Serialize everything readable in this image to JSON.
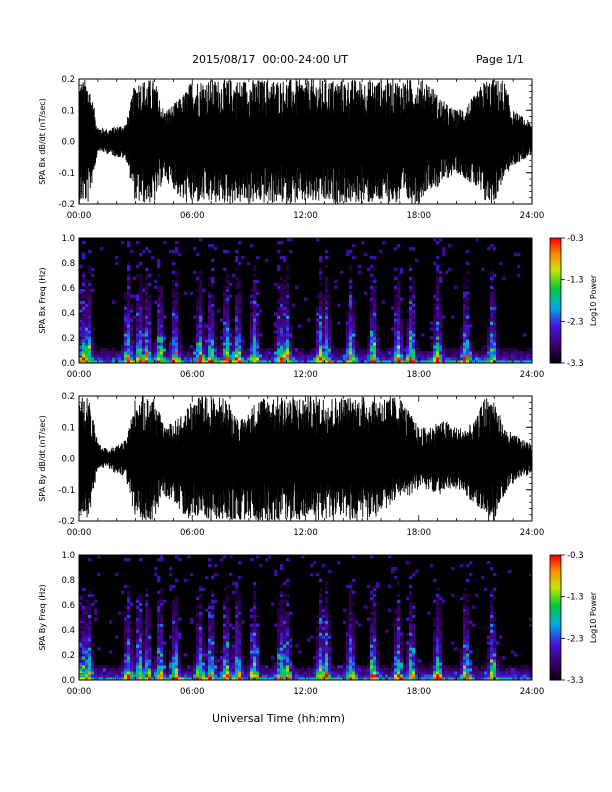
{
  "header": {
    "title": "2015/08/17  00:00-24:00 UT",
    "page": "Page 1/1"
  },
  "xaxis_label": "Universal Time (hh:mm)",
  "chart_data": [
    {
      "type": "line",
      "title": "",
      "ylabel": "SPA Bx dB/dt (nT/sec)",
      "xlabel": "",
      "x_ticks": [
        "00:00",
        "06:00",
        "12:00",
        "18:00",
        "24:00"
      ],
      "xlim": [
        0,
        24
      ],
      "ylim": [
        -0.2,
        0.2
      ],
      "y_ticks": [
        "-0.2",
        "-0.1",
        "0.0",
        "0.1",
        "0.2"
      ],
      "y_tick_values": [
        -0.2,
        -0.1,
        0.0,
        0.1,
        0.2
      ],
      "color": "#000000",
      "envelope": {
        "hours": [
          0.0,
          0.5,
          1.0,
          1.5,
          2.0,
          2.5,
          3.0,
          3.5,
          4.0,
          4.5,
          5.0,
          5.5,
          6.0,
          6.5,
          7.0,
          7.5,
          8.0,
          8.5,
          9.0,
          9.5,
          10.0,
          10.5,
          11.0,
          11.5,
          12.0,
          12.5,
          13.0,
          13.5,
          14.0,
          14.5,
          15.0,
          15.5,
          16.0,
          16.5,
          17.0,
          17.5,
          18.0,
          18.5,
          19.0,
          19.5,
          20.0,
          20.5,
          21.0,
          21.5,
          22.0,
          22.5,
          23.0,
          23.5,
          24.0
        ],
        "max": [
          0.2,
          0.2,
          0.05,
          0.04,
          0.05,
          0.06,
          0.2,
          0.2,
          0.2,
          0.1,
          0.12,
          0.15,
          0.2,
          0.2,
          0.2,
          0.2,
          0.2,
          0.2,
          0.2,
          0.2,
          0.2,
          0.2,
          0.2,
          0.2,
          0.2,
          0.2,
          0.2,
          0.2,
          0.2,
          0.2,
          0.2,
          0.2,
          0.2,
          0.2,
          0.2,
          0.2,
          0.2,
          0.2,
          0.15,
          0.12,
          0.1,
          0.12,
          0.15,
          0.2,
          0.2,
          0.2,
          0.1,
          0.08,
          0.06
        ],
        "min": [
          -0.2,
          -0.2,
          -0.03,
          -0.04,
          -0.05,
          -0.06,
          -0.2,
          -0.2,
          -0.2,
          -0.12,
          -0.15,
          -0.2,
          -0.2,
          -0.2,
          -0.2,
          -0.2,
          -0.2,
          -0.2,
          -0.2,
          -0.2,
          -0.2,
          -0.2,
          -0.2,
          -0.2,
          -0.2,
          -0.2,
          -0.2,
          -0.2,
          -0.2,
          -0.2,
          -0.2,
          -0.2,
          -0.2,
          -0.2,
          -0.2,
          -0.2,
          -0.2,
          -0.15,
          -0.15,
          -0.12,
          -0.1,
          -0.12,
          -0.15,
          -0.2,
          -0.2,
          -0.12,
          -0.08,
          -0.06,
          -0.04
        ]
      }
    },
    {
      "type": "heatmap",
      "title": "",
      "ylabel": "SPA Bx Freq (Hz)",
      "xlabel": "",
      "x_ticks": [
        "00:00",
        "06:00",
        "12:00",
        "18:00",
        "24:00"
      ],
      "xlim": [
        0,
        24
      ],
      "ylim": [
        0.0,
        1.0
      ],
      "y_ticks": [
        "0.0",
        "0.2",
        "0.4",
        "0.6",
        "0.8",
        "1.0"
      ],
      "y_tick_values": [
        0.0,
        0.2,
        0.4,
        0.6,
        0.8,
        1.0
      ],
      "colorbar": {
        "label": "Log10 Power",
        "ticks": [
          "-0.3",
          "-1.3",
          "-2.3",
          "-3.3"
        ],
        "tick_values": [
          -0.3,
          -1.3,
          -2.3,
          -3.3
        ],
        "range": [
          -3.3,
          -0.3
        ]
      },
      "background_value": -3.3,
      "bursts_hours": [
        0.2,
        0.5,
        2.6,
        3.2,
        3.6,
        4.3,
        5.1,
        6.4,
        7.0,
        7.8,
        8.4,
        9.3,
        10.7,
        11.0,
        12.8,
        13.1,
        14.4,
        15.6,
        16.9,
        17.6,
        19.0,
        20.5,
        21.9
      ],
      "burst_peak_log_power": -0.6
    },
    {
      "type": "line",
      "title": "",
      "ylabel": "SPA By dB/dt (nT/sec)",
      "xlabel": "",
      "x_ticks": [
        "00:00",
        "06:00",
        "12:00",
        "18:00",
        "24:00"
      ],
      "xlim": [
        0,
        24
      ],
      "ylim": [
        -0.2,
        0.2
      ],
      "y_ticks": [
        "-0.2",
        "-0.1",
        "0.0",
        "0.1",
        "0.2"
      ],
      "y_tick_values": [
        -0.2,
        -0.1,
        0.0,
        0.1,
        0.2
      ],
      "color": "#000000",
      "envelope": {
        "hours": [
          0.0,
          0.5,
          1.0,
          1.5,
          2.0,
          2.5,
          3.0,
          3.5,
          4.0,
          4.5,
          5.0,
          5.5,
          6.0,
          6.5,
          7.0,
          7.5,
          8.0,
          8.5,
          9.0,
          9.5,
          10.0,
          10.5,
          11.0,
          11.5,
          12.0,
          12.5,
          13.0,
          13.5,
          14.0,
          14.5,
          15.0,
          15.5,
          16.0,
          16.5,
          17.0,
          17.5,
          18.0,
          18.5,
          19.0,
          19.5,
          20.0,
          20.5,
          21.0,
          21.5,
          22.0,
          22.5,
          23.0,
          23.5,
          24.0
        ],
        "max": [
          0.2,
          0.2,
          0.05,
          0.03,
          0.04,
          0.06,
          0.2,
          0.2,
          0.2,
          0.1,
          0.12,
          0.14,
          0.2,
          0.2,
          0.2,
          0.2,
          0.18,
          0.12,
          0.15,
          0.2,
          0.2,
          0.2,
          0.2,
          0.2,
          0.2,
          0.2,
          0.2,
          0.2,
          0.2,
          0.2,
          0.2,
          0.2,
          0.2,
          0.2,
          0.2,
          0.15,
          0.1,
          0.1,
          0.12,
          0.12,
          0.1,
          0.1,
          0.12,
          0.2,
          0.2,
          0.1,
          0.08,
          0.06,
          0.05
        ],
        "min": [
          -0.2,
          -0.2,
          -0.03,
          -0.03,
          -0.05,
          -0.07,
          -0.2,
          -0.2,
          -0.2,
          -0.12,
          -0.15,
          -0.18,
          -0.2,
          -0.2,
          -0.2,
          -0.2,
          -0.2,
          -0.2,
          -0.2,
          -0.2,
          -0.2,
          -0.2,
          -0.2,
          -0.2,
          -0.2,
          -0.2,
          -0.2,
          -0.2,
          -0.2,
          -0.2,
          -0.2,
          -0.2,
          -0.18,
          -0.15,
          -0.12,
          -0.12,
          -0.1,
          -0.1,
          -0.12,
          -0.1,
          -0.1,
          -0.12,
          -0.15,
          -0.2,
          -0.2,
          -0.12,
          -0.08,
          -0.06,
          -0.05
        ]
      }
    },
    {
      "type": "heatmap",
      "title": "",
      "ylabel": "SPA By Freq (Hz)",
      "xlabel": "Universal Time (hh:mm)",
      "x_ticks": [
        "00:00",
        "06:00",
        "12:00",
        "18:00",
        "24:00"
      ],
      "xlim": [
        0,
        24
      ],
      "ylim": [
        0.0,
        1.0
      ],
      "y_ticks": [
        "0.0",
        "0.2",
        "0.4",
        "0.6",
        "0.8",
        "1.0"
      ],
      "y_tick_values": [
        0.0,
        0.2,
        0.4,
        0.6,
        0.8,
        1.0
      ],
      "colorbar": {
        "label": "Log10 Power",
        "ticks": [
          "-0.3",
          "-1.3",
          "-2.3",
          "-3.3"
        ],
        "tick_values": [
          -0.3,
          -1.3,
          -2.3,
          -3.3
        ],
        "range": [
          -3.3,
          -0.3
        ]
      },
      "background_value": -3.3,
      "bursts_hours": [
        0.2,
        0.5,
        2.6,
        3.2,
        3.6,
        4.3,
        5.1,
        6.4,
        7.0,
        7.8,
        8.4,
        9.3,
        10.7,
        11.0,
        12.8,
        13.1,
        14.4,
        15.6,
        16.9,
        17.6,
        19.0,
        20.5,
        21.9
      ],
      "burst_peak_log_power": -0.6
    }
  ]
}
